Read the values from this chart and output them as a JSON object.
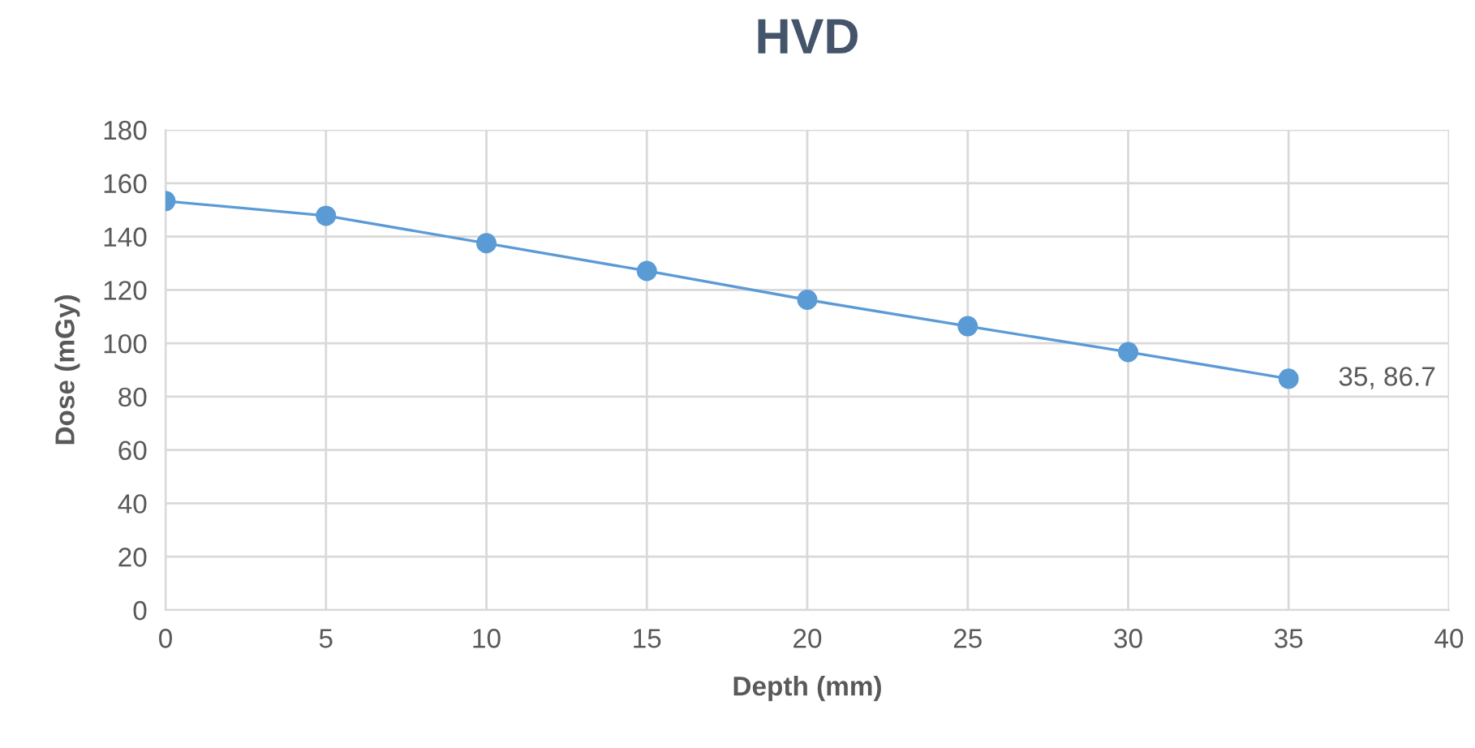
{
  "chart_data": {
    "type": "line",
    "title": "HVD",
    "xlabel": "Depth (mm)",
    "ylabel": "Dose (mGy)",
    "x": [
      0,
      5,
      10,
      15,
      20,
      25,
      30,
      35
    ],
    "series": [
      {
        "color": "#5b9bd5",
        "values": [
          153.3,
          147.8,
          137.5,
          127.1,
          116.3,
          106.4,
          96.7,
          86.7
        ]
      }
    ],
    "annotations": [
      {
        "text": "35, 86.7",
        "x": 35,
        "y": 86.7
      }
    ],
    "xlim": [
      0,
      40
    ],
    "xticks": [
      0,
      5,
      10,
      15,
      20,
      25,
      30,
      35,
      40
    ],
    "ylim": [
      0,
      180
    ],
    "yticks": [
      0,
      20,
      40,
      60,
      80,
      100,
      120,
      140,
      160,
      180
    ],
    "grid": true,
    "marker": "circle",
    "line_style": "solid",
    "legend": false
  }
}
